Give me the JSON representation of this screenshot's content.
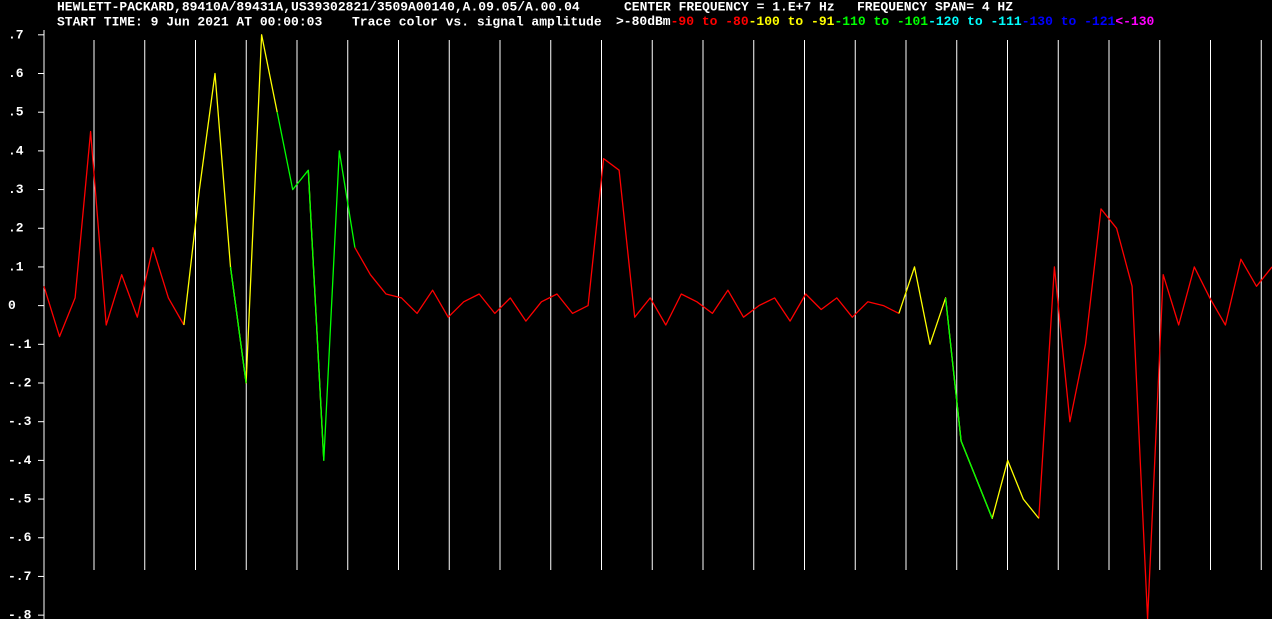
{
  "header": {
    "instrument": "HEWLETT-PACKARD,89410A/89431A,US39302821/3509A00140,A.09.05/A.00.04",
    "center_frequency": "CENTER FREQUENCY = 1.E+7 Hz",
    "frequency_span": "FREQUENCY SPAN= 4 HZ",
    "start_time": "START TIME: 9 Jun 2021 AT 00:00:03",
    "legend_title": "Trace color vs. signal amplitude"
  },
  "chart_data": {
    "type": "line",
    "legend": [
      {
        "name": ">-80dBm",
        "color": "#ffffff"
      },
      {
        "name": "-90 to -80",
        "color": "#ff0000"
      },
      {
        "name": "-100 to -91",
        "color": "#ffff00"
      },
      {
        "name": "-110 to -101",
        "color": "#00ff00"
      },
      {
        "name": "-120 to -111",
        "color": "#00ffff"
      },
      {
        "name": "-130 to -121",
        "color": "#0000ff"
      },
      {
        "name": "<-130",
        "color": "#ff00ff"
      }
    ],
    "ylim": [
      -0.81,
      0.79
    ],
    "yticks": [
      {
        "value": 0.7,
        "label": ".7"
      },
      {
        "value": 0.6,
        "label": ".6"
      },
      {
        "value": 0.5,
        "label": ".5"
      },
      {
        "value": 0.4,
        "label": ".4"
      },
      {
        "value": 0.3,
        "label": ".3"
      },
      {
        "value": 0.2,
        "label": ".2"
      },
      {
        "value": 0.1,
        "label": ".1"
      },
      0,
      {
        "value": -0.1,
        "label": "-.1"
      },
      {
        "value": -0.2,
        "label": "-.2"
      },
      {
        "value": -0.3,
        "label": "-.3"
      },
      {
        "value": -0.4,
        "label": "-.4"
      },
      {
        "value": -0.5,
        "label": "-.5"
      },
      {
        "value": -0.6,
        "label": "-.6"
      },
      {
        "value": -0.7,
        "label": "-.7"
      },
      {
        "value": -0.8,
        "label": "-.8"
      }
    ],
    "series": [
      {
        "color": "#ff0000",
        "values": [
          0.05,
          -0.08,
          0.02,
          0.45,
          -0.05,
          0.08,
          -0.03,
          0.15,
          0.02,
          -0.05,
          null,
          null,
          null,
          null,
          null,
          null,
          null,
          null,
          null,
          null,
          0.15,
          0.08,
          0.03,
          0.02,
          -0.02,
          0.04,
          -0.03,
          0.01,
          0.03,
          -0.02,
          0.02,
          -0.04,
          0.01,
          0.03,
          -0.02,
          0,
          0.38,
          0.35,
          -0.03,
          0.02,
          -0.05,
          0.03,
          0.01,
          -0.02,
          0.04,
          -0.03,
          0,
          0.02,
          -0.04,
          0.03,
          -0.01,
          0.02,
          -0.03,
          0.01,
          0,
          -0.02,
          null,
          null,
          null,
          null,
          null,
          null,
          null,
          null,
          -0.55,
          0.1,
          -0.3,
          -0.1,
          0.25,
          0.2,
          0.05,
          -0.81,
          0.08,
          -0.05,
          0.1,
          0.02,
          -0.05,
          0.12,
          0.05,
          0.1
        ]
      },
      {
        "color": "#ffff00",
        "values": [
          null,
          null,
          null,
          null,
          null,
          null,
          null,
          null,
          null,
          -0.05,
          0.3,
          0.6,
          0.1,
          -0.2,
          0.7,
          0.5,
          null,
          0.35,
          -0.4,
          null,
          null,
          null,
          null,
          null,
          null,
          null,
          null,
          null,
          null,
          null,
          null,
          null,
          null,
          null,
          null,
          null,
          null,
          null,
          null,
          null,
          null,
          null,
          null,
          null,
          null,
          null,
          null,
          null,
          null,
          null,
          null,
          null,
          null,
          null,
          null,
          -0.02,
          0.1,
          -0.1,
          0.02,
          -0.35,
          -0.45,
          -0.55,
          -0.4,
          -0.5,
          -0.55,
          null,
          null,
          null,
          null,
          null,
          null,
          null,
          null,
          null,
          null,
          null,
          null,
          null,
          null,
          null
        ]
      },
      {
        "color": "#00ff00",
        "values": [
          null,
          null,
          null,
          null,
          null,
          null,
          null,
          null,
          null,
          null,
          null,
          null,
          0.1,
          -0.2,
          null,
          0.5,
          0.3,
          0.35,
          -0.4,
          0.4,
          0.15,
          null,
          null,
          null,
          null,
          null,
          null,
          null,
          null,
          null,
          null,
          null,
          null,
          null,
          null,
          null,
          null,
          null,
          null,
          null,
          null,
          null,
          null,
          null,
          null,
          null,
          null,
          null,
          null,
          null,
          null,
          null,
          null,
          null,
          null,
          null,
          null,
          null,
          0.02,
          -0.35,
          -0.45,
          -0.55,
          null,
          null,
          null,
          null,
          null,
          null,
          null,
          null,
          null,
          null,
          null,
          null,
          null,
          null,
          null,
          null,
          null,
          null
        ]
      }
    ]
  }
}
